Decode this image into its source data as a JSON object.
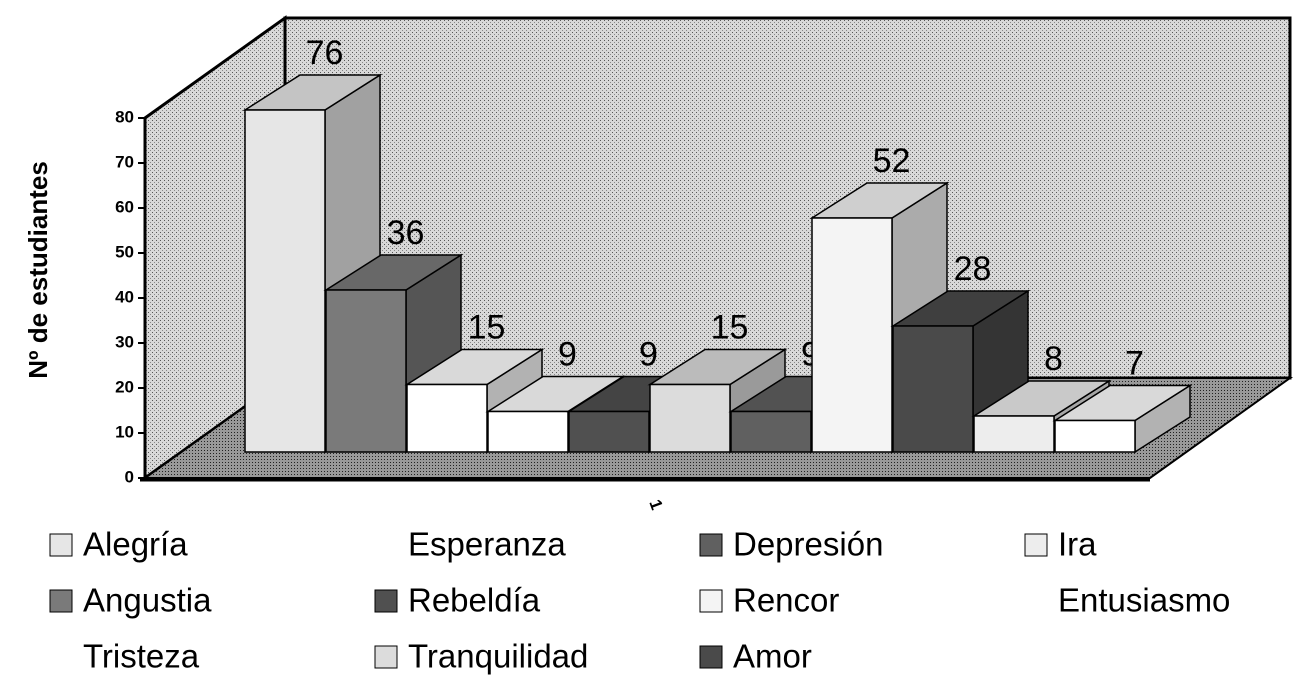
{
  "chart_data": {
    "type": "bar3d",
    "y_label": "Nº de estudiantes",
    "categories": [
      "1"
    ],
    "ylim": [
      0,
      80
    ],
    "yticks": [
      0,
      10,
      20,
      30,
      40,
      50,
      60,
      70,
      80
    ],
    "series": [
      {
        "name": "Alegría",
        "color": "#e6e6e6",
        "values": [
          76
        ]
      },
      {
        "name": "Angustia",
        "color": "#7a7a7a",
        "values": [
          36
        ]
      },
      {
        "name": "Tristeza",
        "color": "#ffffff",
        "values": [
          15
        ]
      },
      {
        "name": "Esperanza",
        "color": "#ffffff",
        "values": [
          9
        ]
      },
      {
        "name": "Rebeldía",
        "color": "#505050",
        "values": [
          9
        ]
      },
      {
        "name": "Tranquilidad",
        "color": "#dcdcdc",
        "values": [
          15
        ]
      },
      {
        "name": "Depresión",
        "color": "#606060",
        "values": [
          9
        ]
      },
      {
        "name": "Rencor",
        "color": "#f4f4f4",
        "values": [
          52
        ]
      },
      {
        "name": "Amor",
        "color": "#4a4a4a",
        "values": [
          28
        ]
      },
      {
        "name": "Ira",
        "color": "#ededed",
        "values": [
          8
        ]
      },
      {
        "name": "Entusiasmo",
        "color": "#ffffff",
        "values": [
          7
        ]
      }
    ]
  }
}
